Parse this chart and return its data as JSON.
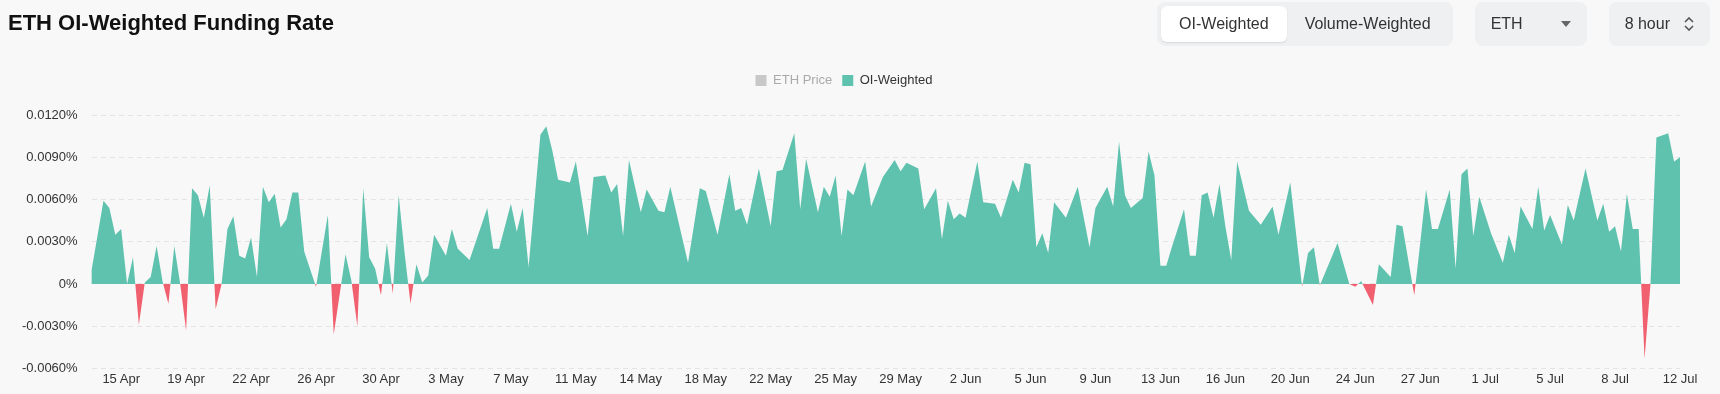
{
  "chart_data": {
    "type": "area",
    "title": "ETH OI-Weighted Funding Rate",
    "annotations": [
      "OI-Weighted",
      "Volume-Weighted",
      "ETH",
      "8 hour"
    ],
    "legend": "top",
    "grid": "y",
    "marker": "none",
    "ylim": [
      -0.006,
      0.012
    ],
    "yticks": [
      {
        "value": -0.006,
        "label": "-0.0060%"
      },
      {
        "value": -0.003,
        "label": "-0.0030%"
      },
      {
        "value": 0,
        "label": "0%"
      },
      {
        "value": 0.003,
        "label": "0.0030%"
      },
      {
        "value": 0.006,
        "label": "0.0060%"
      },
      {
        "value": 0.009,
        "label": "0.0090%"
      },
      {
        "value": 0.012,
        "label": "0.0120%"
      }
    ],
    "xlim": [
      "--04-13T16:00",
      "--07-12T08:00"
    ],
    "xticks": [
      {
        "value": "--04-15T08:00",
        "label": "15 Apr"
      },
      {
        "value": "--04-19T00:00",
        "label": "19 Apr"
      },
      {
        "value": "--04-22T16:00",
        "label": "22 Apr"
      },
      {
        "value": "--04-26T08:00",
        "label": "26 Apr"
      },
      {
        "value": "--04-30T00:00",
        "label": "30 Apr"
      },
      {
        "value": "--05-03T16:00",
        "label": "3 May"
      },
      {
        "value": "--05-07T08:00",
        "label": "7 May"
      },
      {
        "value": "--05-11T00:00",
        "label": "11 May"
      },
      {
        "value": "--05-14T16:00",
        "label": "14 May"
      },
      {
        "value": "--05-18T08:00",
        "label": "18 May"
      },
      {
        "value": "--05-22T00:00",
        "label": "22 May"
      },
      {
        "value": "--05-25T16:00",
        "label": "25 May"
      },
      {
        "value": "--05-29T08:00",
        "label": "29 May"
      },
      {
        "value": "--06-02T00:00",
        "label": "2 Jun"
      },
      {
        "value": "--06-05T16:00",
        "label": "5 Jun"
      },
      {
        "value": "--06-09T08:00",
        "label": "9 Jun"
      },
      {
        "value": "--06-13T00:00",
        "label": "13 Jun"
      },
      {
        "value": "--06-16T16:00",
        "label": "16 Jun"
      },
      {
        "value": "--06-20T08:00",
        "label": "20 Jun"
      },
      {
        "value": "--06-24T00:00",
        "label": "24 Jun"
      },
      {
        "value": "--06-27T16:00",
        "label": "27 Jun"
      },
      {
        "value": "--07-01T08:00",
        "label": "1 Jul"
      },
      {
        "value": "--07-05T00:00",
        "label": "5 Jul"
      },
      {
        "value": "--07-08T16:00",
        "label": "8 Jul"
      },
      {
        "value": "--07-12T08:00",
        "label": "12 Jul"
      }
    ],
    "series": [
      {
        "name": "ETH Price",
        "type": "line",
        "color": "#c8c8c8"
      },
      {
        "name": "OI-Weighted",
        "color": "#5ec2ae",
        "x": [
          "--04-13T16:00",
          "--04-14T08:00",
          "--04-14T16:00",
          "--04-15T00:00",
          "--04-15T08:00",
          "--04-15T16:00",
          "--04-16T00:00",
          "--04-16T08:00",
          "--04-16T16:00",
          "--04-17T00:00",
          "--04-17T08:00",
          "--04-17T16:00",
          "--04-18T00:00",
          "--04-18T08:00",
          "--04-18T16:00",
          "--04-19T00:00",
          "--04-19T08:00",
          "--04-19T16:00",
          "--04-20T00:00",
          "--04-20T08:00",
          "--04-20T16:00",
          "--04-21T00:00",
          "--04-21T08:00",
          "--04-21T16:00",
          "--04-22T00:00",
          "--04-22T08:00",
          "--04-22T16:00",
          "--04-23T00:00",
          "--04-23T08:00",
          "--04-23T16:00",
          "--04-24T00:00",
          "--04-24T08:00",
          "--04-24T16:00",
          "--04-25T00:00",
          "--04-25T08:00",
          "--04-25T16:00",
          "--04-26T08:00",
          "--04-27T00:00",
          "--04-27T08:00",
          "--04-28T00:00",
          "--04-28T08:00",
          "--04-28T16:00",
          "--04-29T00:00",
          "--04-29T08:00",
          "--04-29T16:00",
          "--04-30T00:00",
          "--04-30T08:00",
          "--04-30T16:00",
          "--05-01T00:00",
          "--05-01T08:00",
          "--05-01T16:00",
          "--05-02T00:00",
          "--05-02T08:00",
          "--05-02T16:00",
          "--05-03T00:00",
          "--05-03T16:00",
          "--05-04T00:00",
          "--05-04T08:00",
          "--05-05T00:00",
          "--05-06T00:00",
          "--05-06T08:00",
          "--05-06T16:00",
          "--05-07T08:00",
          "--05-07T16:00",
          "--05-08T00:00",
          "--05-08T08:00",
          "--05-09T00:00",
          "--05-09T08:00",
          "--05-09T16:00",
          "--05-10T00:00",
          "--05-10T16:00",
          "--05-11T00:00",
          "--05-11T16:00",
          "--05-12T00:00",
          "--05-12T16:00",
          "--05-13T00:00",
          "--05-13T08:00",
          "--05-13T16:00",
          "--05-14T00:00",
          "--05-14T16:00",
          "--05-15T00:00",
          "--05-15T16:00",
          "--05-16T00:00",
          "--05-16T08:00",
          "--05-17T08:00",
          "--05-18T00:00",
          "--05-18T08:00",
          "--05-19T00:00",
          "--05-19T16:00",
          "--05-20T00:00",
          "--05-20T08:00",
          "--05-20T16:00",
          "--05-21T08:00",
          "--05-22T00:00",
          "--05-22T08:00",
          "--05-22T16:00",
          "--05-23T08:00",
          "--05-23T16:00",
          "--05-24T00:00",
          "--05-24T16:00",
          "--05-25T00:00",
          "--05-25T08:00",
          "--05-25T16:00",
          "--05-26T00:00",
          "--05-26T08:00",
          "--05-26T16:00",
          "--05-27T08:00",
          "--05-27T16:00",
          "--05-28T08:00",
          "--05-29T00:00",
          "--05-29T08:00",
          "--05-29T16:00",
          "--05-30T08:00",
          "--05-30T16:00",
          "--05-31T08:00",
          "--05-31T16:00",
          "--06-01T00:00",
          "--06-01T08:00",
          "--06-01T16:00",
          "--06-02T00:00",
          "--06-02T16:00",
          "--06-03T00:00",
          "--06-03T16:00",
          "--06-04T00:00",
          "--06-04T16:00",
          "--06-05T00:00",
          "--06-05T08:00",
          "--06-05T16:00",
          "--06-06T00:00",
          "--06-06T08:00",
          "--06-06T16:00",
          "--06-07T00:00",
          "--06-07T16:00",
          "--06-08T08:00",
          "--06-09T00:00",
          "--06-09T08:00",
          "--06-10T00:00",
          "--06-10T08:00",
          "--06-10T16:00",
          "--06-11T00:00",
          "--06-11T08:00",
          "--06-12T00:00",
          "--06-12T08:00",
          "--06-12T16:00",
          "--06-13T00:00",
          "--06-13T08:00",
          "--06-13T16:00",
          "--06-14T08:00",
          "--06-14T16:00",
          "--06-15T00:00",
          "--06-15T08:00",
          "--06-15T16:00",
          "--06-16T00:00",
          "--06-16T08:00",
          "--06-16T16:00",
          "--06-17T00:00",
          "--06-17T08:00",
          "--06-18T00:00",
          "--06-18T16:00",
          "--06-19T08:00",
          "--06-19T16:00",
          "--06-20T08:00",
          "--06-21T00:00",
          "--06-21T08:00",
          "--06-21T16:00",
          "--06-22T00:00",
          "--06-23T00:00",
          "--06-23T16:00",
          "--06-24T00:00",
          "--06-24T08:00",
          "--06-25T00:00",
          "--06-25T08:00",
          "--06-26T00:00",
          "--06-26T08:00",
          "--06-26T16:00",
          "--06-27T08:00",
          "--06-27T16:00",
          "--06-28T00:00",
          "--06-28T08:00",
          "--06-28T16:00",
          "--06-29T08:00",
          "--06-29T16:00",
          "--06-30T00:00",
          "--06-30T08:00",
          "--06-30T16:00",
          "--07-01T00:00",
          "--07-01T16:00",
          "--07-02T08:00",
          "--07-02T16:00",
          "--07-03T00:00",
          "--07-03T08:00",
          "--07-04T00:00",
          "--07-04T08:00",
          "--07-04T16:00",
          "--07-05T00:00",
          "--07-05T16:00",
          "--07-06T00:00",
          "--07-06T08:00",
          "--07-07T00:00",
          "--07-07T16:00",
          "--07-08T00:00",
          "--07-08T08:00",
          "--07-08T16:00",
          "--07-09T00:00",
          "--07-09T08:00",
          "--07-09T16:00",
          "--07-10T00:00",
          "--07-10T08:00",
          "--07-10T16:00",
          "--07-11T00:00",
          "--07-11T16:00",
          "--07-12T00:00",
          "--07-12T08:00"
        ],
        "values": [
          0.001,
          0.0059,
          0.0054,
          0.0035,
          0.0039,
          0,
          0.0019,
          -0.0029,
          0.0001,
          0.0005,
          0.0027,
          0.0002,
          -0.0014,
          0.0027,
          0,
          -0.0033,
          0.0068,
          0.0063,
          0.0047,
          0.007,
          -0.0018,
          0,
          0.0039,
          0.0048,
          0.002,
          0.0018,
          0.0033,
          0.0005,
          0.0069,
          0.0058,
          0.0064,
          0.004,
          0.0046,
          0.0065,
          0.0065,
          0.0023,
          -0.0002,
          0.0049,
          -0.0036,
          0.0021,
          0.0002,
          -0.003,
          0.0068,
          0.0019,
          0.0011,
          -0.0008,
          0.0029,
          -0.0007,
          0.0063,
          0.0022,
          -0.0014,
          0.0014,
          0.0001,
          0.0006,
          0.0035,
          0.002,
          0.0039,
          0.0025,
          0.0017,
          0.0054,
          0.0025,
          0.0025,
          0.0057,
          0.0037,
          0.0054,
          0.0012,
          0.0106,
          0.0112,
          0.0095,
          0.0074,
          0.0072,
          0.0087,
          0.0034,
          0.0076,
          0.0077,
          0.0065,
          0.0071,
          0.0034,
          0.0088,
          0.0051,
          0.0067,
          0.0052,
          0.0051,
          0.0069,
          0.0015,
          0.0068,
          0.0066,
          0.0035,
          0.0078,
          0.0052,
          0.0054,
          0.0042,
          0.0082,
          0.0041,
          0.008,
          0.0081,
          0.0107,
          0.0053,
          0.0089,
          0.0051,
          0.0069,
          0.0062,
          0.0077,
          0.0034,
          0.0067,
          0.0063,
          0.0087,
          0.0055,
          0.0076,
          0.0088,
          0.008,
          0.0086,
          0.0082,
          0.0053,
          0.0068,
          0.0032,
          0.0059,
          0.0046,
          0.005,
          0.0047,
          0.0087,
          0.0058,
          0.0057,
          0.0047,
          0.0074,
          0.0065,
          0.0086,
          0.0085,
          0.0026,
          0.0036,
          0.0022,
          0.0058,
          0.0047,
          0.0069,
          0.0026,
          0.0054,
          0.0069,
          0.0055,
          0.0101,
          0.0063,
          0.0054,
          0.0061,
          0.0094,
          0.0077,
          0.0013,
          0.0013,
          0.0027,
          0.0053,
          0.002,
          0.002,
          0.0063,
          0.0065,
          0.0047,
          0.0071,
          0.0041,
          0.0017,
          0.0087,
          0.0052,
          0.0042,
          0.0055,
          0.0035,
          0.0072,
          -0.0002,
          0.0022,
          0.0026,
          -0.0001,
          0.0029,
          0,
          -0.0002,
          0.0002,
          -0.0015,
          0.0014,
          0.0005,
          0.0042,
          0.0041,
          -0.0008,
          0.0029,
          0.0067,
          0.0039,
          0.0039,
          0.0067,
          0.0011,
          0.0078,
          0.0082,
          0.0034,
          0.0062,
          0.0036,
          0.0015,
          0.0035,
          0.0022,
          0.0055,
          0.0039,
          0.0069,
          0.0038,
          0.0049,
          0.0028,
          0.0056,
          0.0045,
          0.0082,
          0.0045,
          0.0057,
          0.0037,
          0.0041,
          0.0023,
          0.0064,
          0.0039,
          0.0039,
          -0.0053,
          0,
          0.0104,
          0.0107,
          0.0087,
          0.009
        ],
        "colors": [
          "#5ec2ae",
          "#5ec2ae",
          "#5ec2ae",
          "#5ec2ae",
          "#5ec2ae",
          "#5ec2ae",
          "#5ec2ae",
          "#f0606f",
          "#5ec2ae",
          "#5ec2ae",
          "#5ec2ae",
          "#5ec2ae",
          "#f0606f",
          "#5ec2ae",
          "#5ec2ae",
          "#f0606f",
          "#5ec2ae",
          "#5ec2ae",
          "#5ec2ae",
          "#5ec2ae",
          "#f0606f",
          "#5ec2ae",
          "#5ec2ae",
          "#5ec2ae",
          "#5ec2ae",
          "#5ec2ae",
          "#5ec2ae",
          "#5ec2ae",
          "#5ec2ae",
          "#5ec2ae",
          "#5ec2ae",
          "#5ec2ae",
          "#5ec2ae",
          "#5ec2ae",
          "#5ec2ae",
          "#5ec2ae",
          "#f0606f",
          "#5ec2ae",
          "#f0606f",
          "#5ec2ae",
          "#5ec2ae",
          "#f0606f",
          "#5ec2ae",
          "#5ec2ae",
          "#5ec2ae",
          "#f0606f",
          "#5ec2ae",
          "#f0606f",
          "#5ec2ae",
          "#5ec2ae",
          "#f0606f",
          "#5ec2ae",
          "#5ec2ae",
          "#5ec2ae",
          "#5ec2ae",
          "#5ec2ae",
          "#5ec2ae",
          "#5ec2ae",
          "#5ec2ae",
          "#5ec2ae",
          "#5ec2ae",
          "#5ec2ae",
          "#5ec2ae",
          "#5ec2ae",
          "#5ec2ae",
          "#5ec2ae",
          "#5ec2ae",
          "#5ec2ae",
          "#5ec2ae",
          "#5ec2ae",
          "#5ec2ae",
          "#5ec2ae",
          "#5ec2ae",
          "#5ec2ae",
          "#5ec2ae",
          "#5ec2ae",
          "#5ec2ae",
          "#5ec2ae",
          "#5ec2ae",
          "#5ec2ae",
          "#5ec2ae",
          "#5ec2ae",
          "#5ec2ae",
          "#5ec2ae",
          "#5ec2ae",
          "#5ec2ae",
          "#5ec2ae",
          "#5ec2ae",
          "#5ec2ae",
          "#5ec2ae",
          "#5ec2ae",
          "#5ec2ae",
          "#5ec2ae",
          "#5ec2ae",
          "#5ec2ae",
          "#5ec2ae",
          "#5ec2ae",
          "#5ec2ae",
          "#5ec2ae",
          "#5ec2ae",
          "#5ec2ae",
          "#5ec2ae",
          "#5ec2ae",
          "#5ec2ae",
          "#5ec2ae",
          "#5ec2ae",
          "#5ec2ae",
          "#5ec2ae",
          "#5ec2ae",
          "#5ec2ae",
          "#5ec2ae",
          "#5ec2ae",
          "#5ec2ae",
          "#5ec2ae",
          "#5ec2ae",
          "#5ec2ae",
          "#5ec2ae",
          "#5ec2ae",
          "#5ec2ae",
          "#5ec2ae",
          "#5ec2ae",
          "#5ec2ae",
          "#5ec2ae",
          "#5ec2ae",
          "#5ec2ae",
          "#5ec2ae",
          "#5ec2ae",
          "#5ec2ae",
          "#5ec2ae",
          "#5ec2ae",
          "#5ec2ae",
          "#5ec2ae",
          "#5ec2ae",
          "#5ec2ae",
          "#5ec2ae",
          "#5ec2ae",
          "#5ec2ae",
          "#5ec2ae",
          "#5ec2ae",
          "#5ec2ae",
          "#5ec2ae",
          "#5ec2ae",
          "#5ec2ae",
          "#5ec2ae",
          "#5ec2ae",
          "#5ec2ae",
          "#5ec2ae",
          "#5ec2ae",
          "#5ec2ae",
          "#5ec2ae",
          "#5ec2ae",
          "#5ec2ae",
          "#5ec2ae",
          "#5ec2ae",
          "#5ec2ae",
          "#5ec2ae",
          "#5ec2ae",
          "#5ec2ae",
          "#5ec2ae",
          "#5ec2ae",
          "#5ec2ae",
          "#5ec2ae",
          "#f0606f",
          "#5ec2ae",
          "#5ec2ae",
          "#f0606f",
          "#5ec2ae",
          "#5ec2ae",
          "#f0606f",
          "#5ec2ae",
          "#f0606f",
          "#5ec2ae",
          "#5ec2ae",
          "#5ec2ae",
          "#5ec2ae",
          "#f0606f",
          "#5ec2ae",
          "#5ec2ae",
          "#5ec2ae",
          "#5ec2ae",
          "#5ec2ae",
          "#5ec2ae",
          "#5ec2ae",
          "#5ec2ae",
          "#5ec2ae",
          "#5ec2ae",
          "#5ec2ae",
          "#5ec2ae",
          "#5ec2ae",
          "#5ec2ae",
          "#5ec2ae",
          "#5ec2ae",
          "#5ec2ae",
          "#5ec2ae",
          "#5ec2ae",
          "#5ec2ae",
          "#5ec2ae",
          "#5ec2ae",
          "#5ec2ae",
          "#5ec2ae",
          "#5ec2ae",
          "#5ec2ae",
          "#5ec2ae",
          "#5ec2ae",
          "#5ec2ae",
          "#5ec2ae",
          "#5ec2ae",
          "#f0606f",
          "#5ec2ae",
          "#5ec2ae",
          "#5ec2ae",
          "#5ec2ae",
          "#5ec2ae"
        ]
      }
    ]
  }
}
